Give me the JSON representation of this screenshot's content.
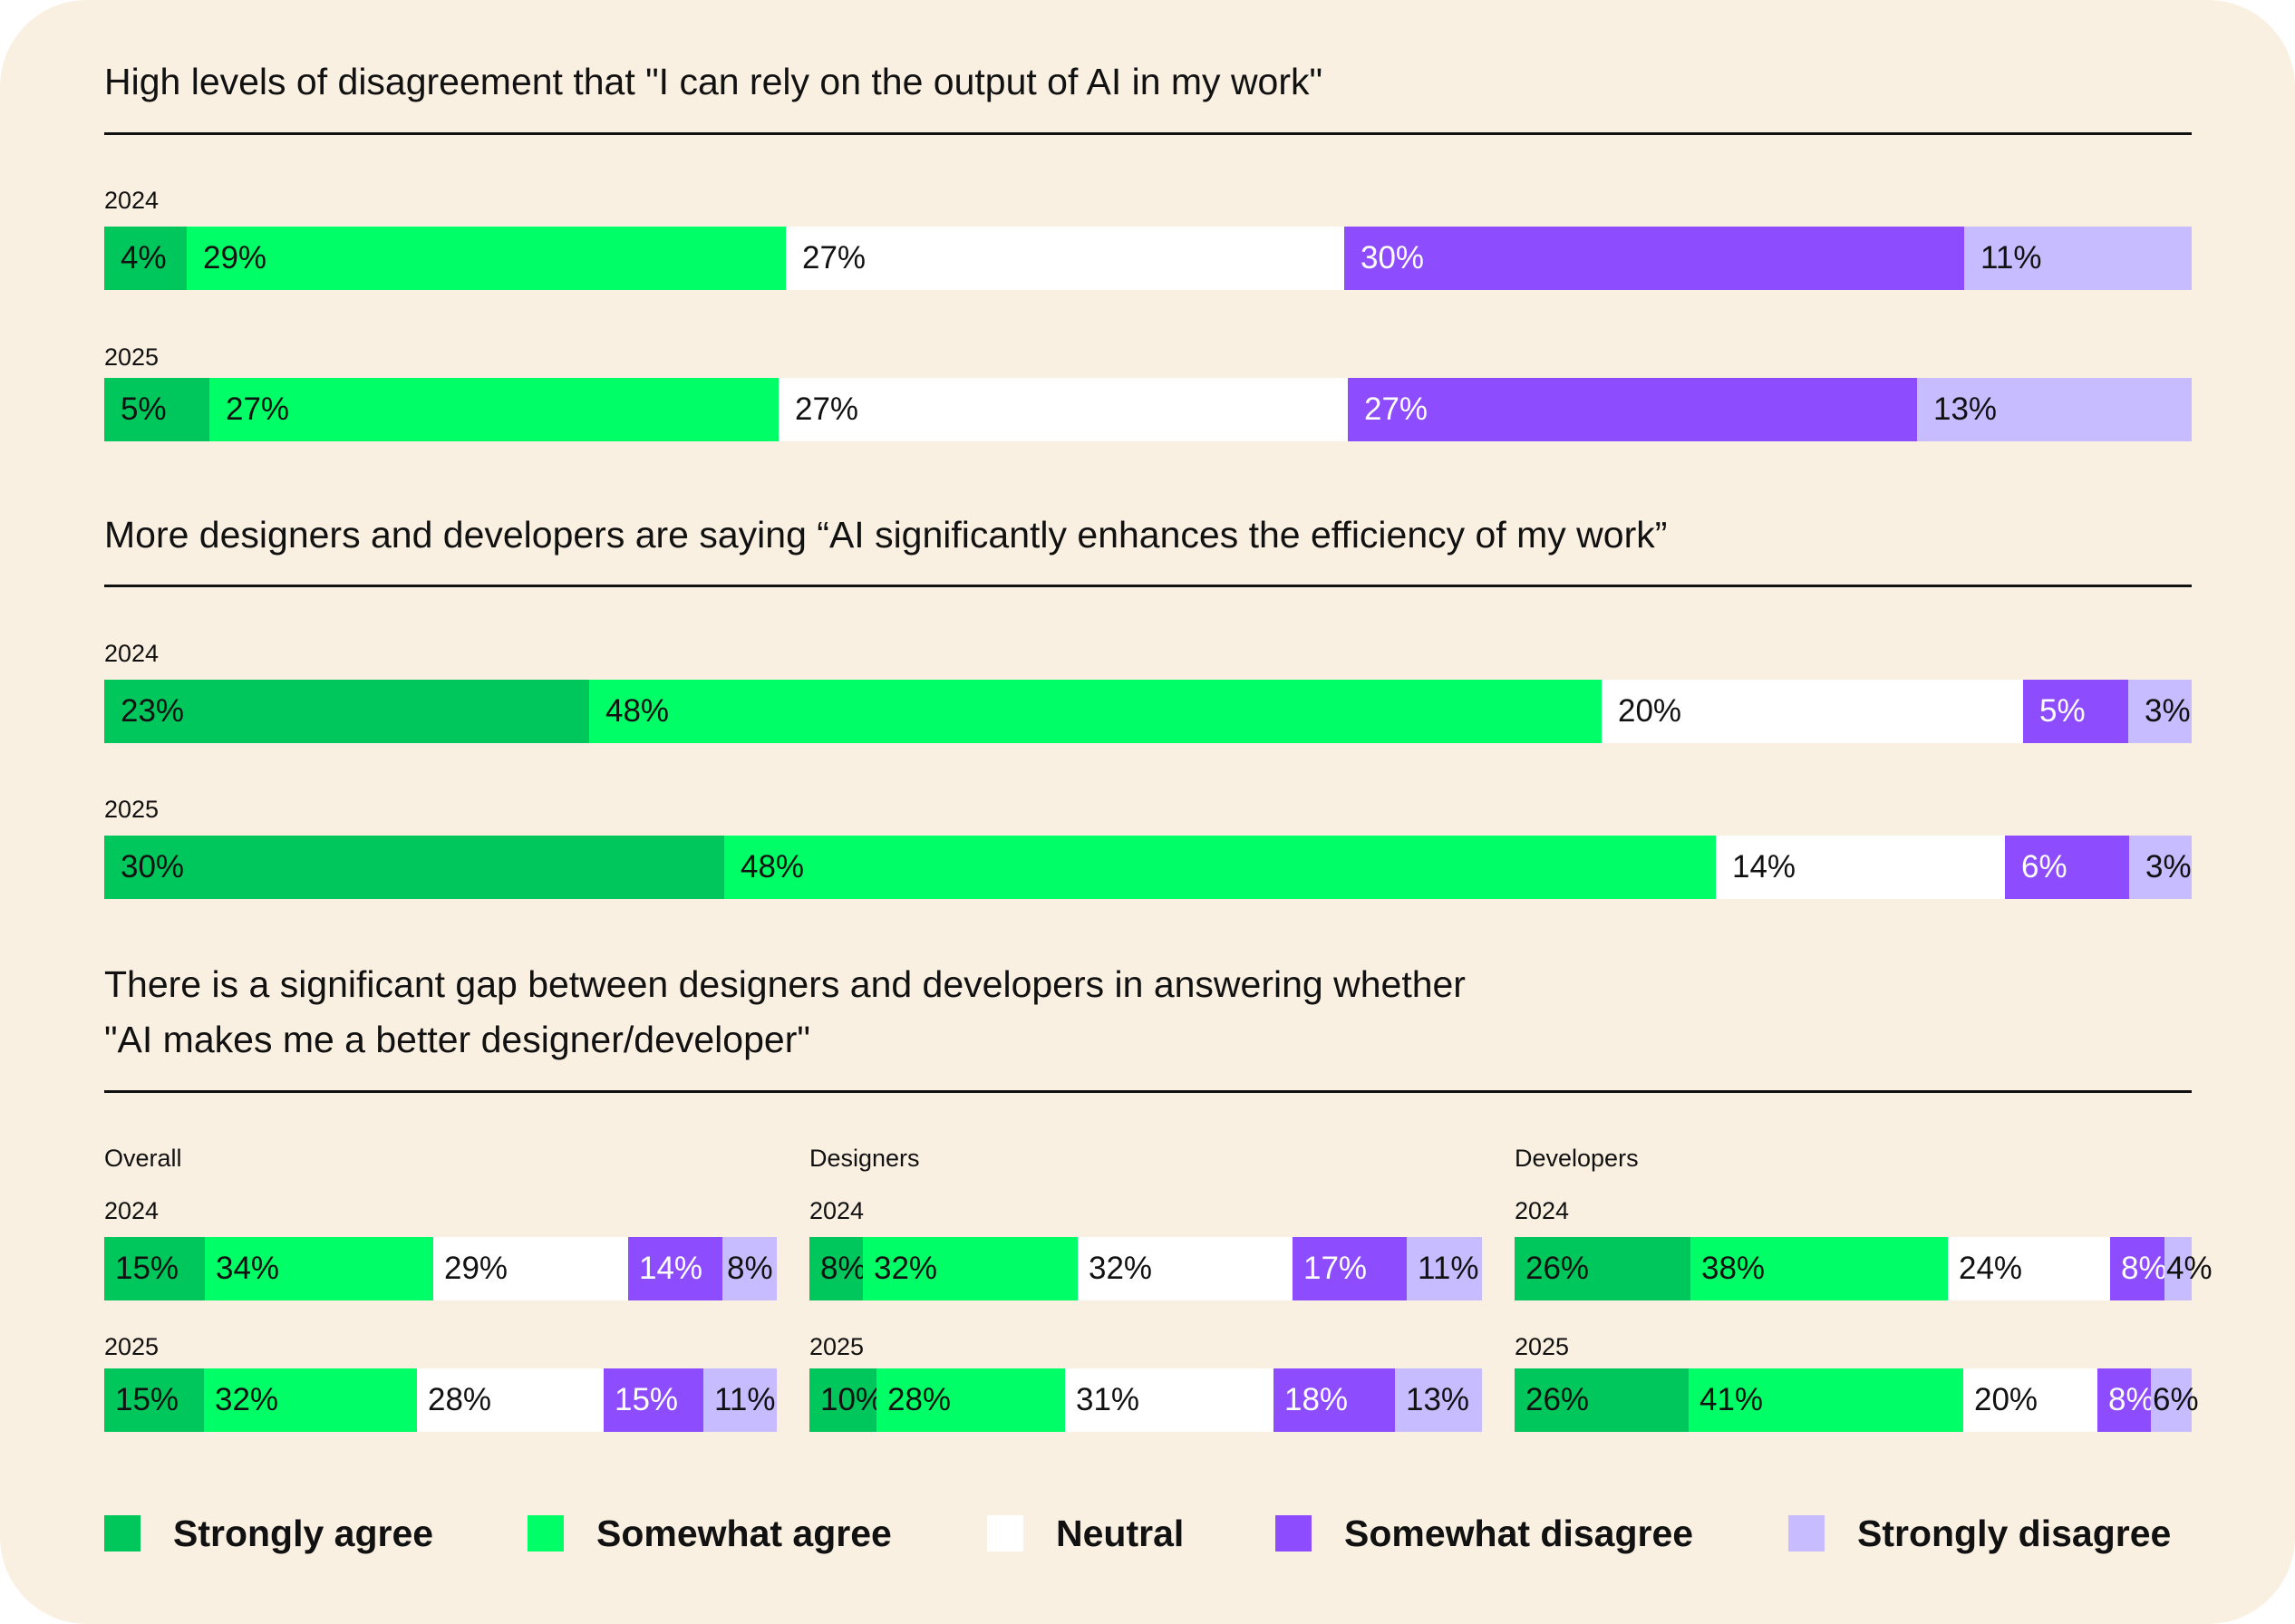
{
  "colors": {
    "background": "#FAF0E2",
    "strongly_agree": "#00C75C",
    "somewhat_agree": "#00FF66",
    "neutral": "#FFFFFF",
    "somewhat_disagree": "#8E4CFF",
    "strongly_disagree": "#C6BCFF",
    "text": "#111111"
  },
  "legend": [
    {
      "key": "strongly_agree",
      "label": "Strongly agree"
    },
    {
      "key": "somewhat_agree",
      "label": "Somewhat agree"
    },
    {
      "key": "neutral",
      "label": "Neutral"
    },
    {
      "key": "somewhat_disagree",
      "label": "Somewhat disagree"
    },
    {
      "key": "strongly_disagree",
      "label": "Strongly disagree"
    }
  ],
  "chart_data": [
    {
      "type": "bar",
      "orientation": "horizontal",
      "stacked": "100%",
      "title": "High levels of disagreement that \"I can rely on the output of AI in my work\"",
      "segments": [
        "Strongly agree",
        "Somewhat agree",
        "Neutral",
        "Somewhat disagree",
        "Strongly disagree"
      ],
      "groups": [
        {
          "name": "",
          "rows": [
            {
              "label": "2024",
              "values": [
                4,
                29,
                27,
                30,
                11
              ]
            },
            {
              "label": "2025",
              "values": [
                5,
                27,
                27,
                27,
                13
              ]
            }
          ]
        }
      ]
    },
    {
      "type": "bar",
      "orientation": "horizontal",
      "stacked": "100%",
      "title": "More designers and developers are saying “AI significantly enhances the efficiency of my work”",
      "segments": [
        "Strongly agree",
        "Somewhat agree",
        "Neutral",
        "Somewhat disagree",
        "Strongly disagree"
      ],
      "groups": [
        {
          "name": "",
          "rows": [
            {
              "label": "2024",
              "values": [
                23,
                48,
                20,
                5,
                3
              ]
            },
            {
              "label": "2025",
              "values": [
                30,
                48,
                14,
                6,
                3
              ]
            }
          ]
        }
      ]
    },
    {
      "type": "bar",
      "orientation": "horizontal",
      "stacked": "100%",
      "title": "There is a significant gap between designers and developers in answering whether",
      "title_line2": "\"AI makes me a better designer/developer\"",
      "segments": [
        "Strongly agree",
        "Somewhat agree",
        "Neutral",
        "Somewhat disagree",
        "Strongly disagree"
      ],
      "groups": [
        {
          "name": "Overall",
          "rows": [
            {
              "label": "2024",
              "values": [
                15,
                34,
                29,
                14,
                8
              ]
            },
            {
              "label": "2025",
              "values": [
                15,
                32,
                28,
                15,
                11
              ]
            }
          ]
        },
        {
          "name": "Designers",
          "rows": [
            {
              "label": "2024",
              "values": [
                8,
                32,
                32,
                17,
                11
              ]
            },
            {
              "label": "2025",
              "values": [
                10,
                28,
                31,
                18,
                13
              ]
            }
          ]
        },
        {
          "name": "Developers",
          "rows": [
            {
              "label": "2024",
              "values": [
                26,
                38,
                24,
                8,
                4
              ]
            },
            {
              "label": "2025",
              "values": [
                26,
                41,
                20,
                8,
                6
              ]
            }
          ]
        }
      ]
    }
  ]
}
